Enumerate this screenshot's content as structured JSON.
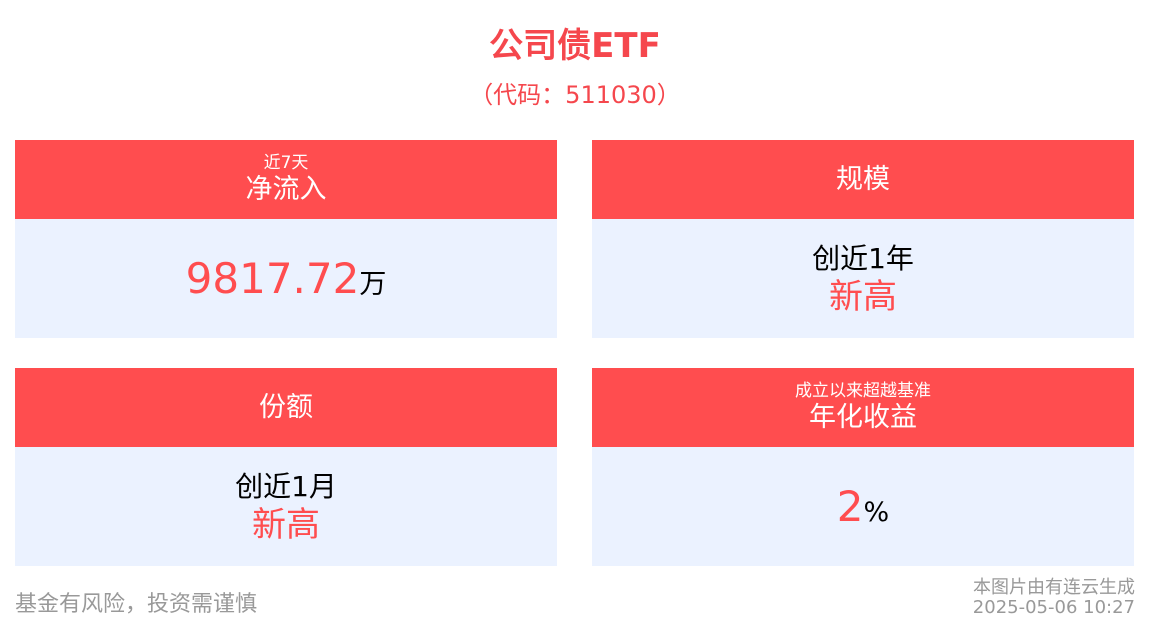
{
  "header": {
    "title": "公司债ETF",
    "subtitle": "（代码：511030）"
  },
  "cards": [
    {
      "label_small": "近7天",
      "label": "净流入",
      "value": "9817.72",
      "unit": "万"
    },
    {
      "label": "规模",
      "line1": "创近1年",
      "line2": "新高"
    },
    {
      "label": "份额",
      "line1": "创近1月",
      "line2": "新高"
    },
    {
      "label_small": "成立以来超越基准",
      "label": "年化收益",
      "value": "2",
      "unit": "%"
    }
  ],
  "footer": {
    "disclaimer": "基金有风险，投资需谨慎",
    "credit": "本图片由有连云生成",
    "timestamp": "2025-05-06 10:27"
  },
  "colors": {
    "accent": "#FF4D4F",
    "card_body": "#EBF2FF"
  }
}
